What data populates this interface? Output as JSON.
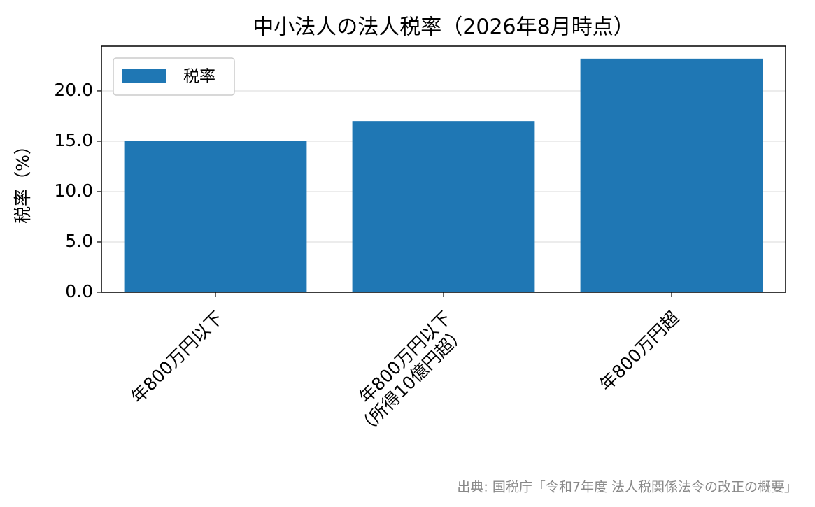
{
  "chart_data": {
    "type": "bar",
    "title": "中小法人の法人税率（2026年8月時点）",
    "ylabel": "税率（%）",
    "categories": [
      "年800万円以下",
      "年800万円以下\n（所得10億円超）",
      "年800万円超"
    ],
    "series": [
      {
        "name": "税率",
        "color": "#1f77b4",
        "values": [
          15,
          17,
          23.2
        ]
      }
    ],
    "ylim": [
      0,
      24.44
    ],
    "yticks": [
      {
        "value": 0,
        "label": "0.0"
      },
      {
        "value": 5,
        "label": "5.0"
      },
      {
        "value": 10,
        "label": "10.0"
      },
      {
        "value": 15,
        "label": "15.0"
      },
      {
        "value": 20,
        "label": "20.0"
      }
    ],
    "grid": true,
    "legend": "upper left",
    "source": "出典: 国税庁「令和7年度 法人税関係法令の改正の概要」"
  }
}
